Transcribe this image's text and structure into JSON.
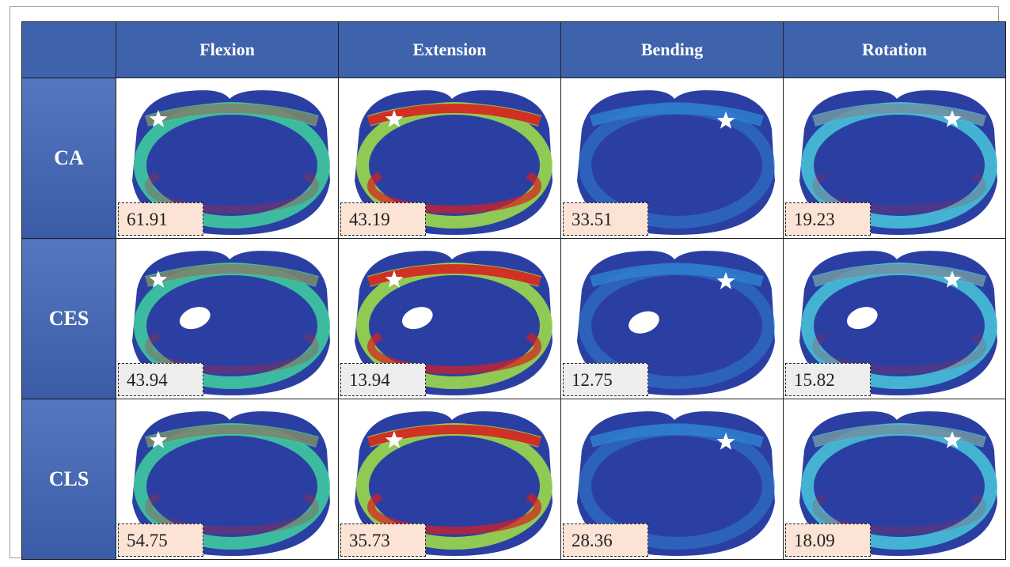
{
  "header": {
    "columns": [
      "Flexion",
      "Extension",
      "Bending",
      "Rotation"
    ]
  },
  "rows": [
    {
      "label": "CA",
      "values": [
        "61.91",
        "43.19",
        "33.51",
        "19.23"
      ]
    },
    {
      "label": "CES",
      "values": [
        "43.94",
        "13.94",
        "12.75",
        "15.82"
      ]
    },
    {
      "label": "CLS",
      "values": [
        "54.75",
        "35.73",
        "28.36",
        "18.09"
      ]
    }
  ]
}
